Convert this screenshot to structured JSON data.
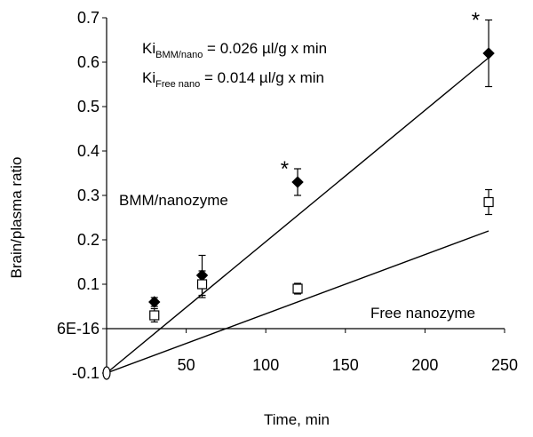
{
  "chart_data": {
    "type": "scatter",
    "xlabel": "Time, min",
    "ylabel": "Brain/plasma ratio",
    "xlim": [
      0,
      250
    ],
    "ylim": [
      -0.1,
      0.7
    ],
    "x_ticks": [
      "50",
      "100",
      "150",
      "200",
      "250"
    ],
    "y_ticks": [
      "-0.1",
      "6E-16",
      "0.1",
      "0.2",
      "0.3",
      "0.4",
      "0.5",
      "0.6",
      "0.7"
    ],
    "y_tick_values": [
      -0.1,
      0,
      0.1,
      0.2,
      0.3,
      0.4,
      0.5,
      0.6,
      0.7
    ],
    "x_tick_values": [
      50,
      100,
      150,
      200,
      250
    ],
    "series": [
      {
        "name": "BMM/nanozyme",
        "marker": "filled-diamond",
        "color": "#000000",
        "points": [
          {
            "x": 30,
            "y": 0.06,
            "err": 0.01
          },
          {
            "x": 60,
            "y": 0.12,
            "err": 0.045
          },
          {
            "x": 120,
            "y": 0.33,
            "err": 0.03
          },
          {
            "x": 240,
            "y": 0.62,
            "err": 0.075
          }
        ],
        "fit": {
          "x": [
            0,
            240
          ],
          "y": [
            -0.1,
            0.61
          ]
        }
      },
      {
        "name": "Free nanozyme",
        "marker": "open-square",
        "color": "#000000",
        "points": [
          {
            "x": 30,
            "y": 0.03,
            "err": 0.015
          },
          {
            "x": 60,
            "y": 0.1,
            "err": 0.03
          },
          {
            "x": 120,
            "y": 0.09,
            "err": 0.012
          },
          {
            "x": 240,
            "y": 0.285,
            "err": 0.028
          }
        ],
        "fit": {
          "x": [
            0,
            240
          ],
          "y": [
            -0.1,
            0.22
          ]
        }
      }
    ],
    "origin_marker": {
      "x": 0,
      "y": -0.1
    },
    "significance_marks": [
      {
        "x": 120,
        "y": 0.33,
        "label": "*"
      },
      {
        "x": 240,
        "y": 0.62,
        "label": "*"
      }
    ],
    "annotations": {
      "ki_bmm_prefix": "Ki",
      "ki_bmm_sub": "BMM/nano",
      "ki_bmm_value": " = 0.026 µl/g x min",
      "ki_free_prefix": "Ki",
      "ki_free_sub": "Free nano",
      "ki_free_value": " = 0.014 µl/g x min",
      "series_label_bmm": "BMM/nanozyme",
      "series_label_free": "Free nanozyme"
    },
    "grid": false
  }
}
